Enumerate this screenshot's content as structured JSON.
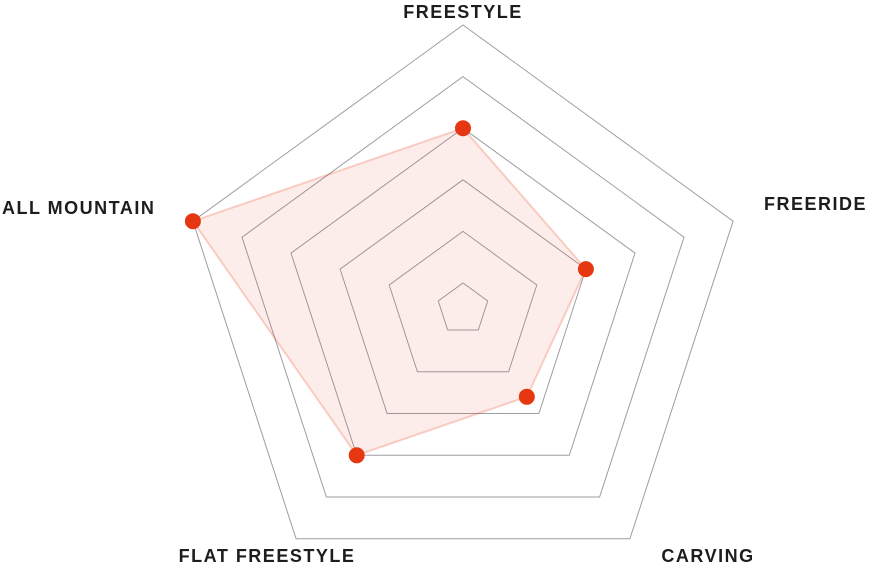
{
  "chart_data": {
    "type": "radar",
    "categories": [
      "FREESTYLE",
      "FREERIDE",
      "CARVING",
      "FLAT FREESTYLE",
      "ALL MOUNTAIN"
    ],
    "values": [
      3,
      2,
      1.6,
      3,
      5
    ],
    "scale": {
      "min": 0,
      "max": 5,
      "ring_levels": [
        0,
        1,
        2,
        3,
        4,
        5
      ]
    },
    "grid_shape": "pentagon-rings",
    "legend_position": "none",
    "series_name": "board-rating"
  },
  "colors": {
    "accent": "#e63712",
    "series_fill": "rgba(230,55,18,0.09)",
    "series_stroke": "rgba(230,55,18,0.22)",
    "grid_line": "#9d9ea3",
    "label_text": "#1d1d1d",
    "background": "#ffffff"
  }
}
